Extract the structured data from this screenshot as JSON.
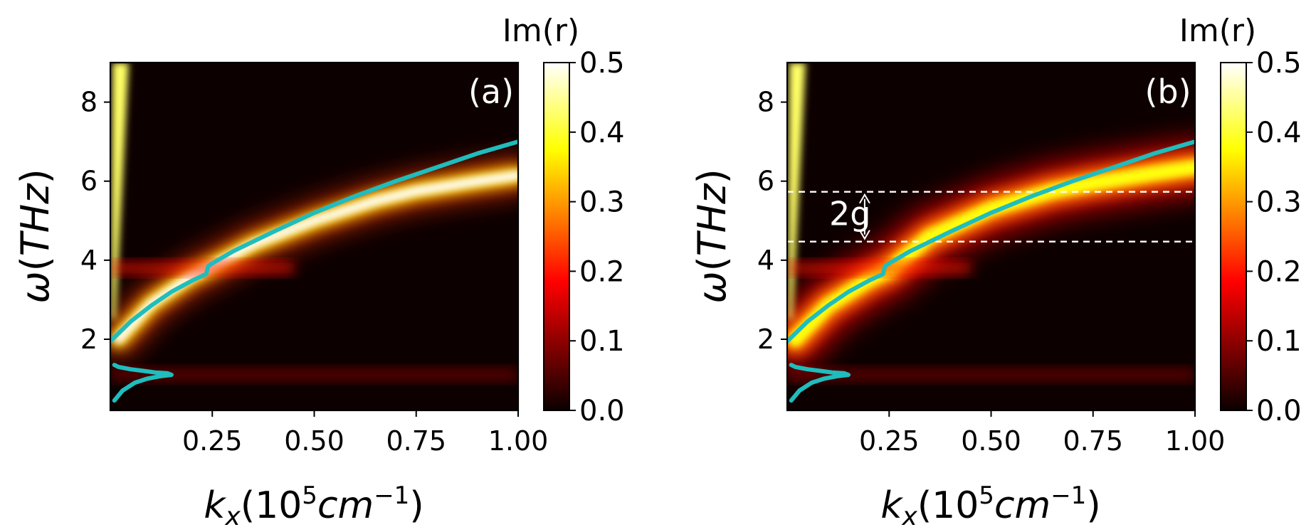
{
  "figure": {
    "panel_labels": [
      "(a)",
      "(b)"
    ],
    "colorbar_title": "Im(r)",
    "annotation_text": "2g"
  },
  "chart_data": [
    {
      "type": "heatmap",
      "panel": "(a)",
      "title": "",
      "xlabel": "k_x(10^5 cm^-1)",
      "ylabel": "ω(THz)",
      "xlim": [
        0.0,
        1.0
      ],
      "ylim": [
        0.2,
        9.0
      ],
      "x_ticks": [
        0.25,
        0.5,
        0.75,
        1.0
      ],
      "x_tick_labels": [
        "0.25",
        "0.50",
        "0.75",
        "1.00"
      ],
      "y_ticks": [
        2,
        4,
        6,
        8
      ],
      "y_tick_labels": [
        "2",
        "4",
        "6",
        "8"
      ],
      "colormap": "hot",
      "colorbar": {
        "label": "Im(r)",
        "range": [
          0.0,
          0.5
        ],
        "ticks": [
          0.0,
          0.1,
          0.2,
          0.3,
          0.4,
          0.5
        ],
        "tick_labels": [
          "0.0",
          "0.1",
          "0.2",
          "0.3",
          "0.4",
          "0.5"
        ]
      },
      "bright_band": [
        [
          0.02,
          2.0
        ],
        [
          0.1,
          2.9
        ],
        [
          0.2,
          3.6
        ],
        [
          0.25,
          3.85
        ],
        [
          0.35,
          4.4
        ],
        [
          0.5,
          5.0
        ],
        [
          0.65,
          5.5
        ],
        [
          0.75,
          5.75
        ],
        [
          0.9,
          6.0
        ],
        [
          1.0,
          6.15
        ]
      ],
      "bright_band_intensity": 0.5,
      "series": [
        {
          "name": "dispersion-upper",
          "color": "#1fbdbd",
          "x": [
            0.0,
            0.05,
            0.1,
            0.15,
            0.2,
            0.235,
            0.24,
            0.25,
            0.3,
            0.4,
            0.5,
            0.6,
            0.7,
            0.8,
            0.9,
            1.0
          ],
          "y": [
            1.95,
            2.45,
            2.85,
            3.2,
            3.48,
            3.65,
            3.85,
            3.92,
            4.22,
            4.72,
            5.2,
            5.62,
            6.0,
            6.35,
            6.7,
            7.0
          ]
        },
        {
          "name": "dispersion-lower",
          "color": "#1fbdbd",
          "x": [
            0.01,
            0.03,
            0.06,
            0.09,
            0.12,
            0.15,
            0.14,
            0.11,
            0.08,
            0.05,
            0.02,
            0.01
          ],
          "y": [
            0.45,
            0.7,
            0.9,
            1.0,
            1.06,
            1.1,
            1.14,
            1.16,
            1.2,
            1.24,
            1.3,
            1.35
          ]
        }
      ]
    },
    {
      "type": "heatmap",
      "panel": "(b)",
      "title": "",
      "xlabel": "k_x(10^5 cm^-1)",
      "ylabel": "ω(THz)",
      "xlim": [
        0.0,
        1.0
      ],
      "ylim": [
        0.2,
        9.0
      ],
      "x_ticks": [
        0.25,
        0.5,
        0.75,
        1.0
      ],
      "x_tick_labels": [
        "0.25",
        "0.50",
        "0.75",
        "1.00"
      ],
      "y_ticks": [
        2,
        4,
        6,
        8
      ],
      "y_tick_labels": [
        "2",
        "4",
        "6",
        "8"
      ],
      "colormap": "hot",
      "colorbar": {
        "label": "Im(r)",
        "range": [
          0.0,
          0.5
        ],
        "ticks": [
          0.0,
          0.1,
          0.2,
          0.3,
          0.4,
          0.5
        ],
        "tick_labels": [
          "0.0",
          "0.1",
          "0.2",
          "0.3",
          "0.4",
          "0.5"
        ]
      },
      "bright_band": [
        [
          0.02,
          2.0
        ],
        [
          0.1,
          2.85
        ],
        [
          0.2,
          3.5
        ],
        [
          0.25,
          3.75
        ],
        [
          0.35,
          4.6
        ],
        [
          0.5,
          5.3
        ],
        [
          0.65,
          5.75
        ],
        [
          0.75,
          5.95
        ],
        [
          0.9,
          6.2
        ],
        [
          1.0,
          6.35
        ]
      ],
      "bright_band_intensity": 0.38,
      "dashed_lines_y": [
        5.73,
        4.47
      ],
      "annotation": {
        "text": "2g",
        "arrow_from_y": 5.73,
        "arrow_to_y": 4.47,
        "x": 0.19
      },
      "series": [
        {
          "name": "dispersion-upper",
          "color": "#1fbdbd",
          "x": [
            0.0,
            0.05,
            0.1,
            0.15,
            0.2,
            0.235,
            0.24,
            0.25,
            0.3,
            0.4,
            0.5,
            0.6,
            0.7,
            0.8,
            0.9,
            1.0
          ],
          "y": [
            1.95,
            2.45,
            2.85,
            3.2,
            3.48,
            3.65,
            3.85,
            3.92,
            4.22,
            4.72,
            5.2,
            5.62,
            6.0,
            6.35,
            6.7,
            7.0
          ]
        },
        {
          "name": "dispersion-lower",
          "color": "#1fbdbd",
          "x": [
            0.01,
            0.03,
            0.06,
            0.09,
            0.12,
            0.15,
            0.14,
            0.11,
            0.08,
            0.05,
            0.02,
            0.01
          ],
          "y": [
            0.45,
            0.7,
            0.9,
            1.0,
            1.06,
            1.1,
            1.14,
            1.16,
            1.2,
            1.24,
            1.3,
            1.35
          ]
        }
      ]
    }
  ]
}
